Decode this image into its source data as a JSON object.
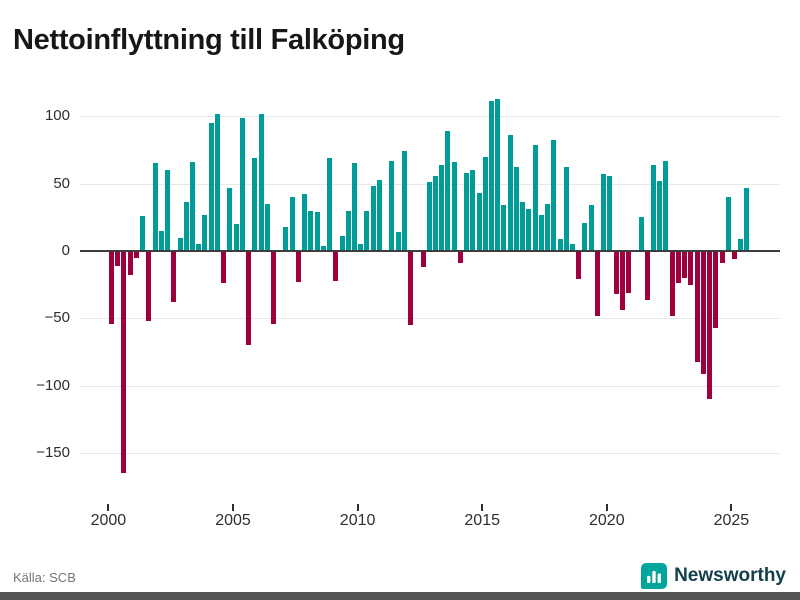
{
  "title": "Nettoinflyttning till Falköping",
  "footer": {
    "source": "Källa: SCB",
    "brand": "Newsworthy"
  },
  "colors": {
    "positive_bar": "#009C97",
    "negative_bar": "#9E003E",
    "brand_icon": "#00A59B",
    "brand_text": "#14404C"
  },
  "chart_data": {
    "type": "bar",
    "title": "Nettoinflyttning till Falköping",
    "x_tick_labels": [
      "2000",
      "2005",
      "2010",
      "2015",
      "2020",
      "2025"
    ],
    "y_tick_values": [
      100,
      50,
      0,
      -50,
      -100,
      -150
    ],
    "ylim": [
      -175,
      120
    ],
    "grid": true,
    "legend": "none",
    "positive_color": "#009C97",
    "negative_color": "#9E003E",
    "quarters": [
      {
        "label": "2000Q1",
        "value": -54
      },
      {
        "label": "2000Q2",
        "value": -11
      },
      {
        "label": "2000Q3",
        "value": -165
      },
      {
        "label": "2000Q4",
        "value": -18
      },
      {
        "label": "2001Q1",
        "value": -5
      },
      {
        "label": "2001Q2",
        "value": 26
      },
      {
        "label": "2001Q3",
        "value": -52
      },
      {
        "label": "2001Q4",
        "value": 65
      },
      {
        "label": "2002Q1",
        "value": 15
      },
      {
        "label": "2002Q2",
        "value": 60
      },
      {
        "label": "2002Q3",
        "value": -38
      },
      {
        "label": "2002Q4",
        "value": 10
      },
      {
        "label": "2003Q1",
        "value": 36
      },
      {
        "label": "2003Q2",
        "value": 66
      },
      {
        "label": "2003Q3",
        "value": 5
      },
      {
        "label": "2003Q4",
        "value": 27
      },
      {
        "label": "2004Q1",
        "value": 95
      },
      {
        "label": "2004Q2",
        "value": 102
      },
      {
        "label": "2004Q3",
        "value": -24
      },
      {
        "label": "2004Q4",
        "value": 47
      },
      {
        "label": "2005Q1",
        "value": 20
      },
      {
        "label": "2005Q2",
        "value": 99
      },
      {
        "label": "2005Q3",
        "value": -70
      },
      {
        "label": "2005Q4",
        "value": 69
      },
      {
        "label": "2006Q1",
        "value": 102
      },
      {
        "label": "2006Q2",
        "value": 35
      },
      {
        "label": "2006Q3",
        "value": -54
      },
      {
        "label": "2006Q4",
        "value": 0
      },
      {
        "label": "2007Q1",
        "value": 18
      },
      {
        "label": "2007Q2",
        "value": 40
      },
      {
        "label": "2007Q3",
        "value": -23
      },
      {
        "label": "2007Q4",
        "value": 42
      },
      {
        "label": "2008Q1",
        "value": 30
      },
      {
        "label": "2008Q2",
        "value": 29
      },
      {
        "label": "2008Q3",
        "value": 4
      },
      {
        "label": "2008Q4",
        "value": 69
      },
      {
        "label": "2009Q1",
        "value": -22
      },
      {
        "label": "2009Q2",
        "value": 11
      },
      {
        "label": "2009Q3",
        "value": 30
      },
      {
        "label": "2009Q4",
        "value": 65
      },
      {
        "label": "2010Q1",
        "value": 5
      },
      {
        "label": "2010Q2",
        "value": 30
      },
      {
        "label": "2010Q3",
        "value": 48
      },
      {
        "label": "2010Q4",
        "value": 53
      },
      {
        "label": "2011Q1",
        "value": 0
      },
      {
        "label": "2011Q2",
        "value": 67
      },
      {
        "label": "2011Q3",
        "value": 14
      },
      {
        "label": "2011Q4",
        "value": 74
      },
      {
        "label": "2012Q1",
        "value": -55
      },
      {
        "label": "2012Q2",
        "value": 0
      },
      {
        "label": "2012Q3",
        "value": -12
      },
      {
        "label": "2012Q4",
        "value": 51
      },
      {
        "label": "2013Q1",
        "value": 56
      },
      {
        "label": "2013Q2",
        "value": 64
      },
      {
        "label": "2013Q3",
        "value": 89
      },
      {
        "label": "2013Q4",
        "value": 66
      },
      {
        "label": "2014Q1",
        "value": -9
      },
      {
        "label": "2014Q2",
        "value": 58
      },
      {
        "label": "2014Q3",
        "value": 60
      },
      {
        "label": "2014Q4",
        "value": 43
      },
      {
        "label": "2015Q1",
        "value": 70
      },
      {
        "label": "2015Q2",
        "value": 111
      },
      {
        "label": "2015Q3",
        "value": 113
      },
      {
        "label": "2015Q4",
        "value": 34
      },
      {
        "label": "2016Q1",
        "value": 86
      },
      {
        "label": "2016Q2",
        "value": 62
      },
      {
        "label": "2016Q3",
        "value": 36
      },
      {
        "label": "2016Q4",
        "value": 31
      },
      {
        "label": "2017Q1",
        "value": 79
      },
      {
        "label": "2017Q2",
        "value": 27
      },
      {
        "label": "2017Q3",
        "value": 35
      },
      {
        "label": "2017Q4",
        "value": 82
      },
      {
        "label": "2018Q1",
        "value": 9
      },
      {
        "label": "2018Q2",
        "value": 62
      },
      {
        "label": "2018Q3",
        "value": 5
      },
      {
        "label": "2018Q4",
        "value": -21
      },
      {
        "label": "2019Q1",
        "value": 21
      },
      {
        "label": "2019Q2",
        "value": 34
      },
      {
        "label": "2019Q3",
        "value": -48
      },
      {
        "label": "2019Q4",
        "value": 57
      },
      {
        "label": "2020Q1",
        "value": 56
      },
      {
        "label": "2020Q2",
        "value": -32
      },
      {
        "label": "2020Q3",
        "value": -44
      },
      {
        "label": "2020Q4",
        "value": -31
      },
      {
        "label": "2021Q1",
        "value": 0
      },
      {
        "label": "2021Q2",
        "value": 25
      },
      {
        "label": "2021Q3",
        "value": -36
      },
      {
        "label": "2021Q4",
        "value": 64
      },
      {
        "label": "2022Q1",
        "value": 52
      },
      {
        "label": "2022Q2",
        "value": 67
      },
      {
        "label": "2022Q3",
        "value": -48
      },
      {
        "label": "2022Q4",
        "value": -24
      },
      {
        "label": "2023Q1",
        "value": -20
      },
      {
        "label": "2023Q2",
        "value": -25
      },
      {
        "label": "2023Q3",
        "value": -82
      },
      {
        "label": "2023Q4",
        "value": -91
      },
      {
        "label": "2024Q1",
        "value": -110
      },
      {
        "label": "2024Q2",
        "value": -57
      },
      {
        "label": "2024Q3",
        "value": -9
      },
      {
        "label": "2024Q4",
        "value": 40
      },
      {
        "label": "2025Q1",
        "value": -6
      },
      {
        "label": "2025Q2",
        "value": 9
      },
      {
        "label": "2025Q3",
        "value": 47
      }
    ]
  }
}
